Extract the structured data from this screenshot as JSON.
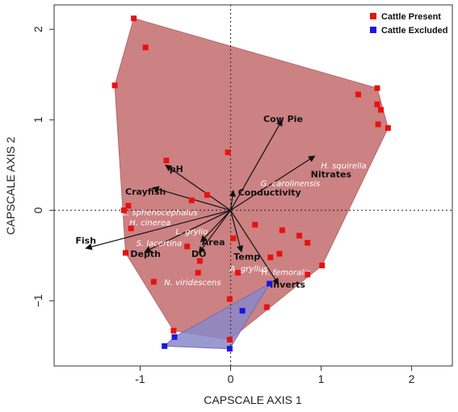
{
  "chart_data": {
    "type": "scatter",
    "xlabel": "CAPSCALE AXIS 1",
    "ylabel": "CAPSCALE AXIS 2",
    "xlim": [
      -1.95,
      2.45
    ],
    "ylim": [
      -1.72,
      2.27
    ],
    "xticks": [
      -1,
      0,
      1,
      2
    ],
    "yticks": [
      -1,
      0,
      1,
      2
    ],
    "xtick_labels": [
      "-1",
      "0",
      "1",
      "2"
    ],
    "ytick_labels": [
      "−1",
      "0",
      "1",
      "2"
    ],
    "reference_lines": {
      "x": 0,
      "y": 0
    },
    "legend": {
      "placement": "top-right",
      "entries": [
        {
          "label": "Cattle Present",
          "color": "#e8120f"
        },
        {
          "label": "Cattle Excluded",
          "color": "#1818e0"
        }
      ]
    },
    "series": [
      {
        "name": "Cattle Present",
        "color": "#e8120f",
        "hull_color": "#c97a7c",
        "points": [
          [
            -1.07,
            2.12
          ],
          [
            -0.94,
            1.8
          ],
          [
            -1.28,
            1.38
          ],
          [
            1.41,
            1.28
          ],
          [
            1.62,
            1.35
          ],
          [
            1.62,
            1.17
          ],
          [
            1.66,
            1.11
          ],
          [
            1.63,
            0.95
          ],
          [
            1.74,
            0.91
          ],
          [
            -0.03,
            0.64
          ],
          [
            -0.71,
            0.55
          ],
          [
            -0.26,
            0.17
          ],
          [
            -0.43,
            0.11
          ],
          [
            -1.13,
            0.05
          ],
          [
            -1.18,
            0.0
          ],
          [
            0.27,
            -0.16
          ],
          [
            -1.1,
            -0.2
          ],
          [
            0.57,
            -0.22
          ],
          [
            0.76,
            -0.28
          ],
          [
            0.03,
            -0.31
          ],
          [
            0.85,
            -0.36
          ],
          [
            -0.48,
            -0.4
          ],
          [
            0.54,
            -0.48
          ],
          [
            0.44,
            -0.52
          ],
          [
            -1.16,
            -0.47
          ],
          [
            1.01,
            -0.61
          ],
          [
            -0.34,
            -0.56
          ],
          [
            -0.36,
            -0.69
          ],
          [
            -0.85,
            -0.79
          ],
          [
            0.85,
            -0.71
          ],
          [
            0.08,
            -0.69
          ],
          [
            -0.01,
            -0.98
          ],
          [
            0.4,
            -1.07
          ],
          [
            -0.63,
            -1.33
          ],
          [
            -0.01,
            -1.43
          ]
        ]
      },
      {
        "name": "Cattle Excluded",
        "color": "#1818e0",
        "hull_color": "#8a88c8",
        "points": [
          [
            0.43,
            -0.81
          ],
          [
            0.13,
            -1.11
          ],
          [
            -0.62,
            -1.4
          ],
          [
            -0.73,
            -1.5
          ],
          [
            -0.01,
            -1.53
          ]
        ]
      }
    ],
    "vectors": [
      {
        "label": "Cow Pie",
        "x": 0.57,
        "y": 1.0,
        "lx": 0.58,
        "ly": 1.01
      },
      {
        "label": "Nitrates",
        "x": 0.93,
        "y": 0.6,
        "lx": 1.11,
        "ly": 0.4
      },
      {
        "label": "Conductivity",
        "x": 0.03,
        "y": 0.22,
        "lx": 0.43,
        "ly": 0.2
      },
      {
        "label": "pH",
        "x": -0.72,
        "y": 0.5,
        "lx": -0.6,
        "ly": 0.46
      },
      {
        "label": "Crayfish",
        "x": -0.86,
        "y": 0.25,
        "lx": -0.94,
        "ly": 0.21
      },
      {
        "label": "Fish",
        "x": -1.6,
        "y": -0.42,
        "lx": -1.6,
        "ly": -0.33
      },
      {
        "label": "Depth",
        "x": -0.95,
        "y": -0.46,
        "lx": -0.94,
        "ly": -0.48
      },
      {
        "label": "Area",
        "x": -0.33,
        "y": -0.35,
        "lx": -0.19,
        "ly": -0.35
      },
      {
        "label": "DO",
        "x": -0.35,
        "y": -0.47,
        "lx": -0.35,
        "ly": -0.48
      },
      {
        "label": "Temp",
        "x": 0.12,
        "y": -0.46,
        "lx": 0.18,
        "ly": -0.51
      },
      {
        "label": "Inverts",
        "x": 0.53,
        "y": -0.82,
        "lx": 0.63,
        "ly": -0.82
      }
    ],
    "species": [
      {
        "label": "H. squirella",
        "x": 1.25,
        "y": 0.5
      },
      {
        "label": "G. carolinensis",
        "x": 0.66,
        "y": 0.3
      },
      {
        "label": "L. sphenocephalus",
        "x": -0.78,
        "y": -0.02
      },
      {
        "label": "H. cinerea",
        "x": -0.89,
        "y": -0.13
      },
      {
        "label": "L. grylio",
        "x": -0.43,
        "y": -0.23
      },
      {
        "label": "S. lacertina",
        "x": -0.79,
        "y": -0.36
      },
      {
        "label": "A. gryllus",
        "x": 0.2,
        "y": -0.64
      },
      {
        "label": "H. femoralis",
        "x": 0.61,
        "y": -0.68
      },
      {
        "label": "N. viridescens",
        "x": -0.42,
        "y": -0.79
      }
    ]
  }
}
